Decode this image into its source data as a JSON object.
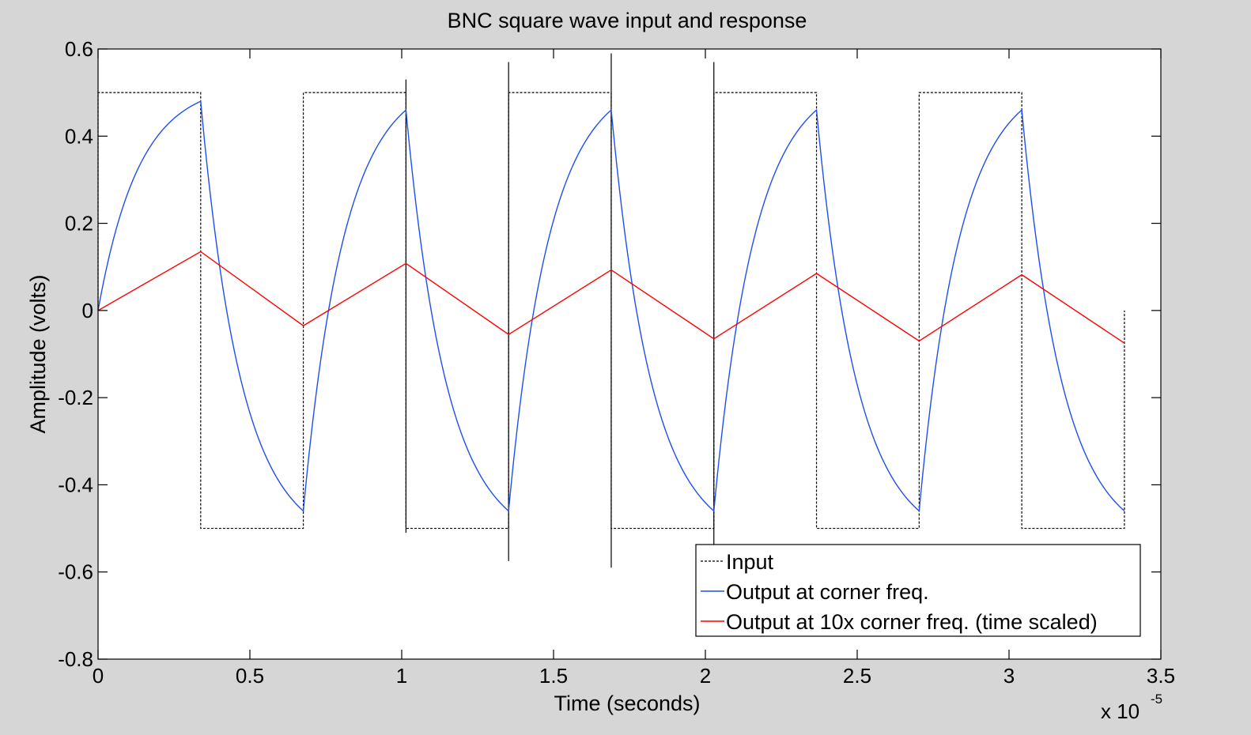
{
  "chart_data": {
    "type": "line",
    "title": "BNC square wave input and response",
    "xlabel": "Time (seconds)",
    "ylabel": "Amplitude (volts)",
    "x_multiplier": "x 10",
    "x_multiplier_exp": "-5",
    "xlim": [
      0,
      3.5
    ],
    "ylim": [
      -0.8,
      0.6
    ],
    "xticks": [
      0,
      0.5,
      1,
      1.5,
      2,
      2.5,
      3,
      3.5
    ],
    "xtick_labels": [
      "0",
      "0.5",
      "1",
      "1.5",
      "2",
      "2.5",
      "3",
      "3.5"
    ],
    "yticks": [
      0.6,
      0.4,
      0.2,
      0,
      -0.2,
      -0.4,
      -0.6,
      -0.8
    ],
    "ytick_labels": [
      "0.6",
      "0.4",
      "0.2",
      "0",
      "-0.2",
      "-0.4",
      "-0.6",
      "-0.8"
    ],
    "grid": false,
    "legend_position": "bottom-right",
    "period": 0.676,
    "half_periods": 10,
    "time_end": 3.38,
    "series": [
      {
        "name": "Input",
        "color": "#000000",
        "style": "dashed",
        "levels": [
          0.5,
          -0.5
        ],
        "spikes": [
          {
            "x": 1.014,
            "y": [
              0.53,
              -0.51
            ]
          },
          {
            "x": 1.352,
            "y": [
              0.57,
              -0.575
            ]
          },
          {
            "x": 1.69,
            "y": [
              0.59,
              -0.59
            ]
          },
          {
            "x": 2.028,
            "y": [
              0.57,
              -0.55
            ]
          }
        ]
      },
      {
        "name": "Output at corner freq.",
        "color": "#1f4ff0",
        "style": "solid",
        "peak_levels": [
          0.48,
          -0.46,
          0.46,
          -0.46,
          0.46,
          -0.46,
          0.46,
          -0.46,
          0.46,
          -0.46
        ]
      },
      {
        "name": "Output at 10x corner freq. (time scaled)",
        "color": "#ff0000",
        "style": "solid",
        "x": [
          0,
          0.338,
          0.676,
          1.014,
          1.352,
          1.69,
          2.028,
          2.366,
          2.704,
          3.042,
          3.38
        ],
        "y": [
          0,
          0.135,
          -0.035,
          0.108,
          -0.055,
          0.093,
          -0.065,
          0.085,
          -0.07,
          0.082,
          -0.075
        ]
      }
    ]
  }
}
